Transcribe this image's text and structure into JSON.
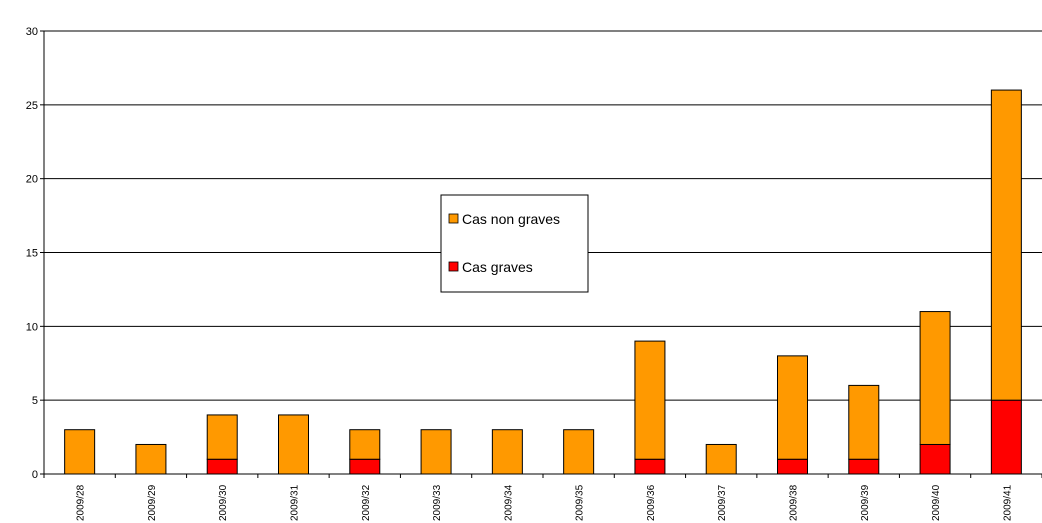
{
  "chart_data": {
    "type": "bar",
    "stacked": true,
    "categories": [
      "2009/28",
      "2009/29",
      "2009/30",
      "2009/31",
      "2009/32",
      "2009/33",
      "2009/34",
      "2009/35",
      "2009/36",
      "2009/37",
      "2009/38",
      "2009/39",
      "2009/40",
      "2009/41"
    ],
    "series": [
      {
        "name": "Cas graves",
        "color": "#ff0000",
        "values": [
          0,
          0,
          1,
          0,
          1,
          0,
          0,
          0,
          1,
          0,
          1,
          1,
          2,
          5
        ]
      },
      {
        "name": "Cas non graves",
        "color": "#ff9900",
        "values": [
          3,
          2,
          3,
          4,
          2,
          3,
          3,
          3,
          8,
          2,
          7,
          5,
          9,
          21
        ]
      }
    ],
    "legend_order": [
      "Cas non graves",
      "Cas graves"
    ],
    "ylim": [
      0,
      30
    ],
    "yticks": [
      0,
      5,
      10,
      15,
      20,
      25,
      30
    ],
    "grid": true,
    "legend_position": "center",
    "title": "",
    "xlabel": "",
    "ylabel": ""
  }
}
